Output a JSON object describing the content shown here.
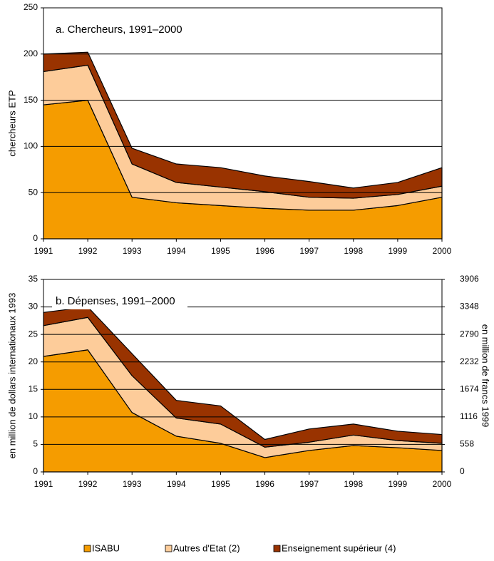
{
  "chart_data": [
    {
      "type": "area",
      "stacked": true,
      "grid": true,
      "annotation": "a. Chercheurs, 1991–2000",
      "y_label": "chercheurs ETP",
      "x": [
        1991,
        1992,
        1993,
        1994,
        1995,
        1996,
        1997,
        1998,
        1999,
        2000
      ],
      "xlim": [
        1991,
        2000
      ],
      "xticks": [
        1991,
        1992,
        1993,
        1994,
        1995,
        1996,
        1997,
        1998,
        1999,
        2000
      ],
      "ylim": [
        0,
        250
      ],
      "yticks": [
        0,
        50,
        100,
        150,
        200,
        250
      ],
      "series": [
        {
          "color": "#f59c00",
          "values": [
            145,
            150,
            45,
            39,
            36,
            33,
            31,
            31,
            36,
            45
          ]
        },
        {
          "color": "#fdcc9a",
          "values": [
            36,
            38,
            36,
            22,
            20,
            18,
            14,
            13,
            12,
            12
          ]
        },
        {
          "color": "#993300",
          "values": [
            19,
            14,
            17,
            20,
            21,
            17,
            17,
            11,
            13,
            20
          ]
        }
      ]
    },
    {
      "type": "area",
      "stacked": true,
      "grid": true,
      "annotation": "b. Dépenses, 1991–2000",
      "y_label": "en million de dollars internationaux 1993",
      "y2_label": "en million de francs 1999",
      "x": [
        1991,
        1992,
        1993,
        1994,
        1995,
        1996,
        1997,
        1998,
        1999,
        2000
      ],
      "xlim": [
        1991,
        2000
      ],
      "xticks": [
        1991,
        1992,
        1993,
        1994,
        1995,
        1996,
        1997,
        1998,
        1999,
        2000
      ],
      "ylim": [
        0,
        35
      ],
      "yticks": [
        0,
        5,
        10,
        15,
        20,
        25,
        30,
        35
      ],
      "y2lim": [
        0,
        3906
      ],
      "y2ticks": [
        0,
        558,
        1116,
        1674,
        2232,
        2790,
        3348,
        3906
      ],
      "series": [
        {
          "name": "ISABU",
          "color": "#f59c00",
          "values": [
            21,
            22.2,
            10.8,
            6.5,
            5.2,
            2.6,
            3.9,
            4.8,
            4.4,
            3.9
          ]
        },
        {
          "name": "Autres d'Etat (2)",
          "color": "#fdcc9a",
          "values": [
            5.6,
            5.9,
            6.7,
            3.3,
            3.5,
            1.9,
            1.5,
            1.9,
            1.3,
            1.3
          ]
        },
        {
          "name": "Enseignement supérieur (4)",
          "color": "#993300",
          "values": [
            2.4,
            1.9,
            4.0,
            3.2,
            3.3,
            1.4,
            2.4,
            2.0,
            1.7,
            1.6
          ]
        }
      ]
    }
  ]
}
